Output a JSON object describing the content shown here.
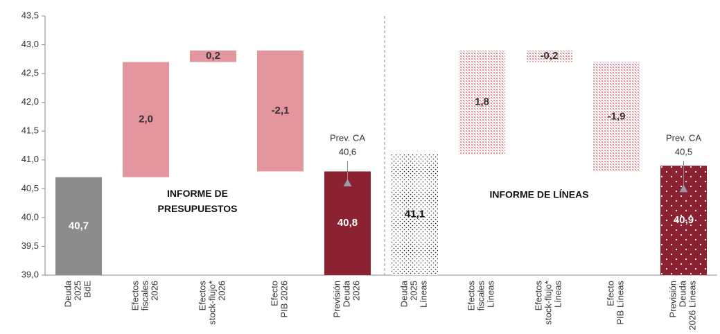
{
  "chart_data": {
    "type": "waterfall",
    "categories": [
      "Deuda\n2025\nBdE",
      "Efectos\nfiscales\n2026",
      "Efectos\nstock-flujo*\n2026",
      "Efecto\nPIB 2026",
      "Previsión\nDeuda\n2026",
      "Deuda\n2025\nLíneas",
      "Efectos\nfiscales\nLíneas",
      "Efectos\nstock-flujo*\nLíneas",
      "Efecto\nPIB Líneas",
      "Previsión\nDeuda\n2026 Líneas"
    ],
    "values": [
      40.7,
      2.0,
      0.2,
      -2.1,
      40.8,
      41.1,
      1.8,
      -0.2,
      -1.9,
      40.9
    ],
    "value_labels": [
      "40,7",
      "2,0",
      "0,2",
      "-2,1",
      "40,8",
      "41,1",
      "1,8",
      "-0,2",
      "-1,9",
      "40,9"
    ],
    "measures": [
      "total",
      "relative",
      "relative",
      "relative",
      "total",
      "total",
      "relative",
      "relative",
      "relative",
      "total"
    ],
    "colors": [
      "#8c8c8c",
      "#e3969e",
      "#e3969e",
      "#e3969e",
      "#8b2231",
      "#222222",
      "#e3969e",
      "#e3969e",
      "#e3969e",
      "#8b2231"
    ],
    "patterns": [
      null,
      null,
      null,
      null,
      null,
      "dots",
      "mesh",
      "mesh",
      "mesh",
      "dots-inverse"
    ],
    "label_colors": [
      "#ffffff",
      "#333333",
      "#333333",
      "#333333",
      "#ffffff",
      "#111111",
      "#333333",
      "#333333",
      "#333333",
      "#ffffff"
    ],
    "ylim": [
      39.0,
      43.5
    ],
    "yticks": [
      {
        "value": 39.0,
        "label": "39,0"
      },
      {
        "value": 39.5,
        "label": "39,5"
      },
      {
        "value": 40.0,
        "label": "40,0"
      },
      {
        "value": 40.5,
        "label": "40,5"
      },
      {
        "value": 41.0,
        "label": "41,0"
      },
      {
        "value": 41.5,
        "label": "41,5"
      },
      {
        "value": 42.0,
        "label": "42,0"
      },
      {
        "value": 42.5,
        "label": "42,5"
      },
      {
        "value": 43.0,
        "label": "43,0"
      },
      {
        "value": 43.5,
        "label": "43,5"
      }
    ],
    "markers": [
      {
        "category": 4,
        "label": "Prev. CA",
        "value": 40.6,
        "value_label": "40,6"
      },
      {
        "category": 9,
        "label": "Prev. CA",
        "value": 40.5,
        "value_label": "40,5"
      }
    ],
    "section_labels": [
      "INFORME DE\nPRESUPUESTOS",
      "INFORME DE LÍNEAS"
    ]
  }
}
